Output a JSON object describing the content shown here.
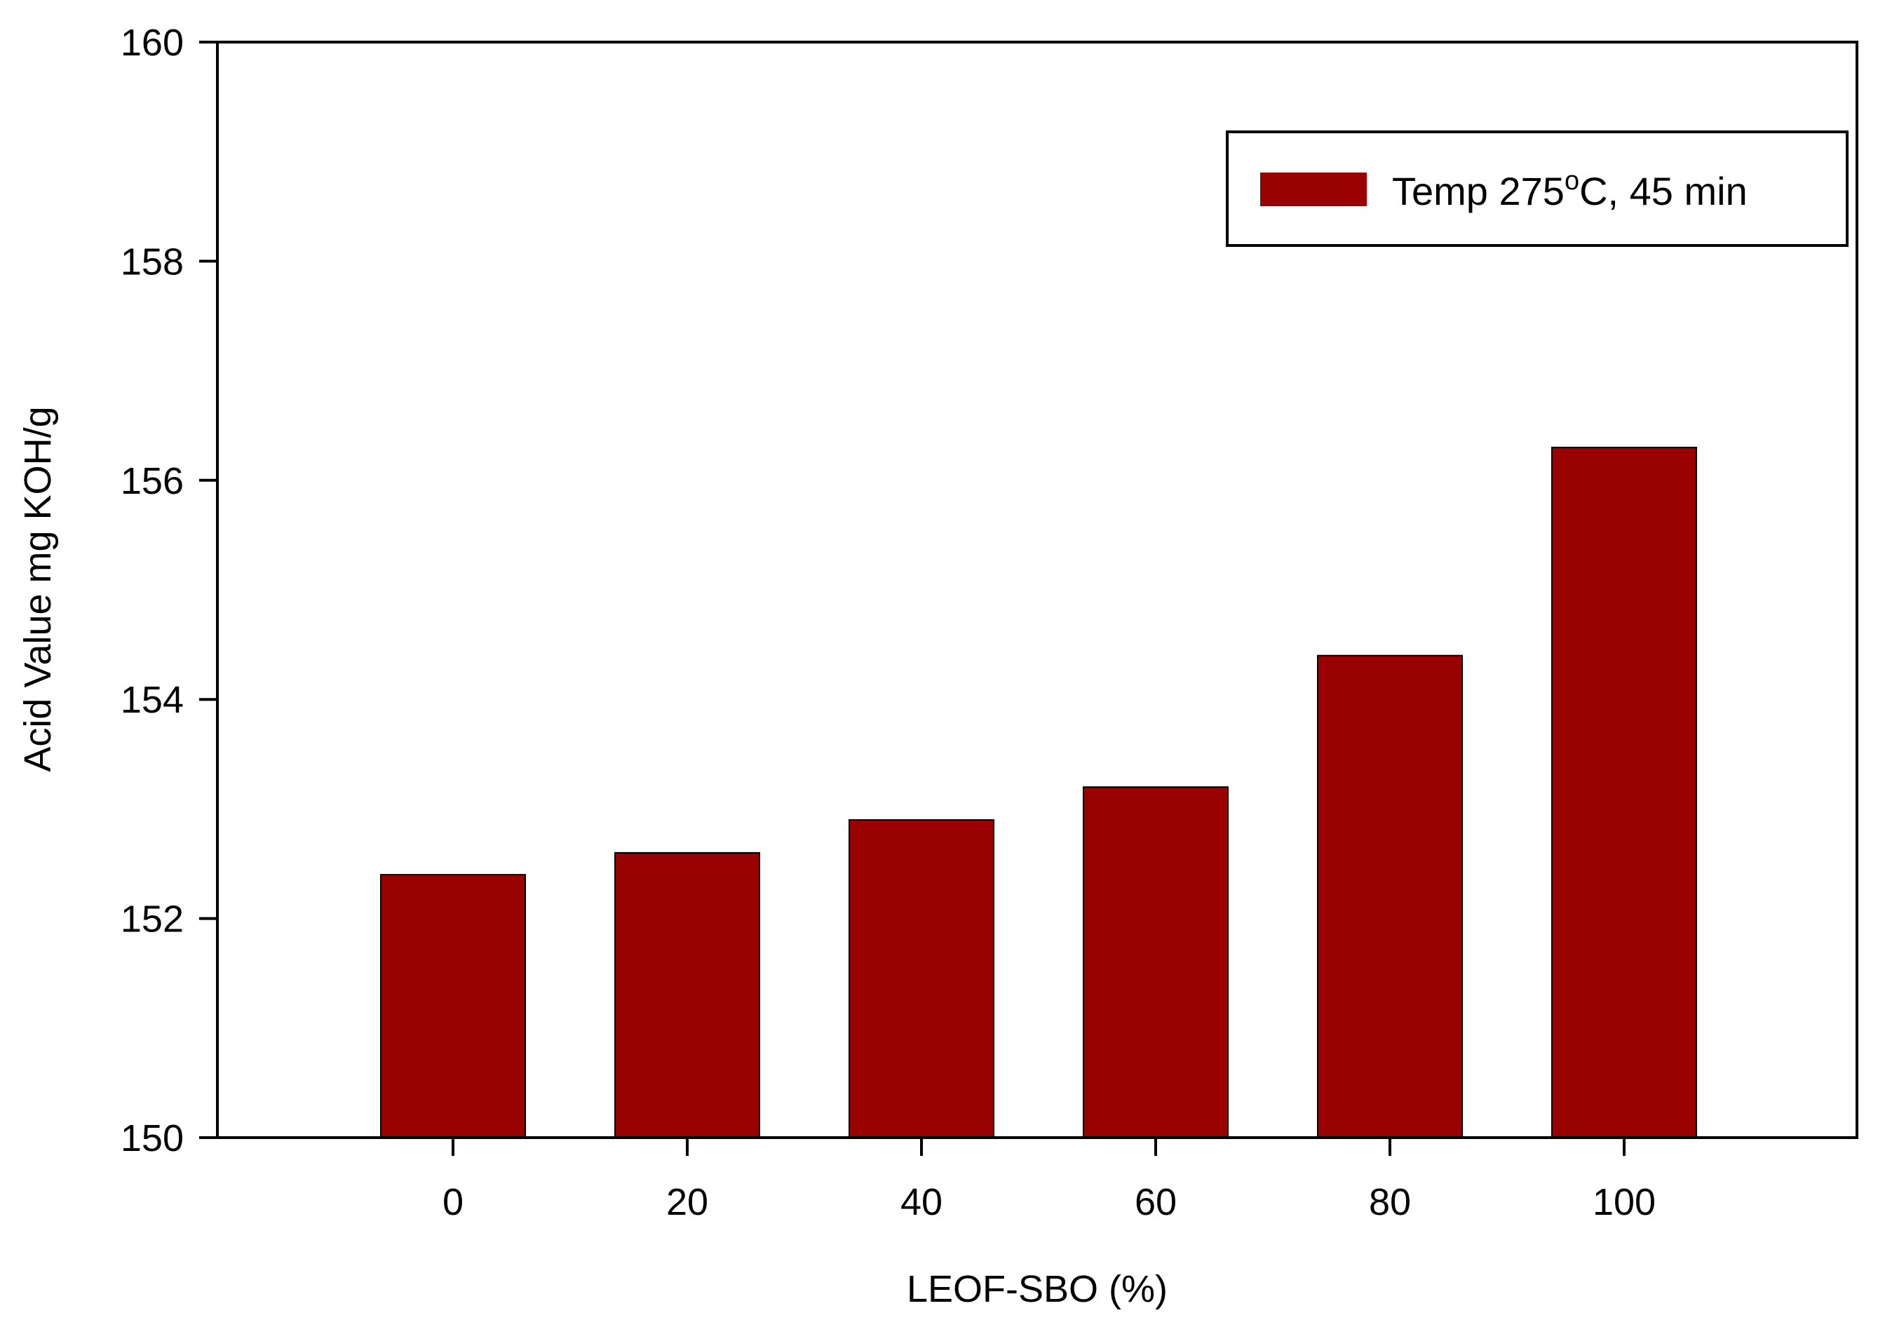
{
  "chart_data": {
    "type": "bar",
    "categories": [
      "0",
      "20",
      "40",
      "60",
      "80",
      "100"
    ],
    "series": [
      {
        "name": "Temp 275oC, 45 min",
        "legend": {
          "prefix": "Temp 275",
          "superscript": "o",
          "suffix": "C, 45 min"
        },
        "values": [
          152.4,
          152.6,
          152.9,
          153.2,
          154.4,
          156.3
        ],
        "color": "#990000"
      }
    ],
    "xlabel": "LEOF-SBO (%)",
    "ylabel": "Acid Value mg KOH/g",
    "ylim": [
      150,
      160
    ],
    "yticks": [
      "150",
      "152",
      "154",
      "156",
      "158",
      "160"
    ],
    "grid": false,
    "legend_position": "top-right"
  }
}
